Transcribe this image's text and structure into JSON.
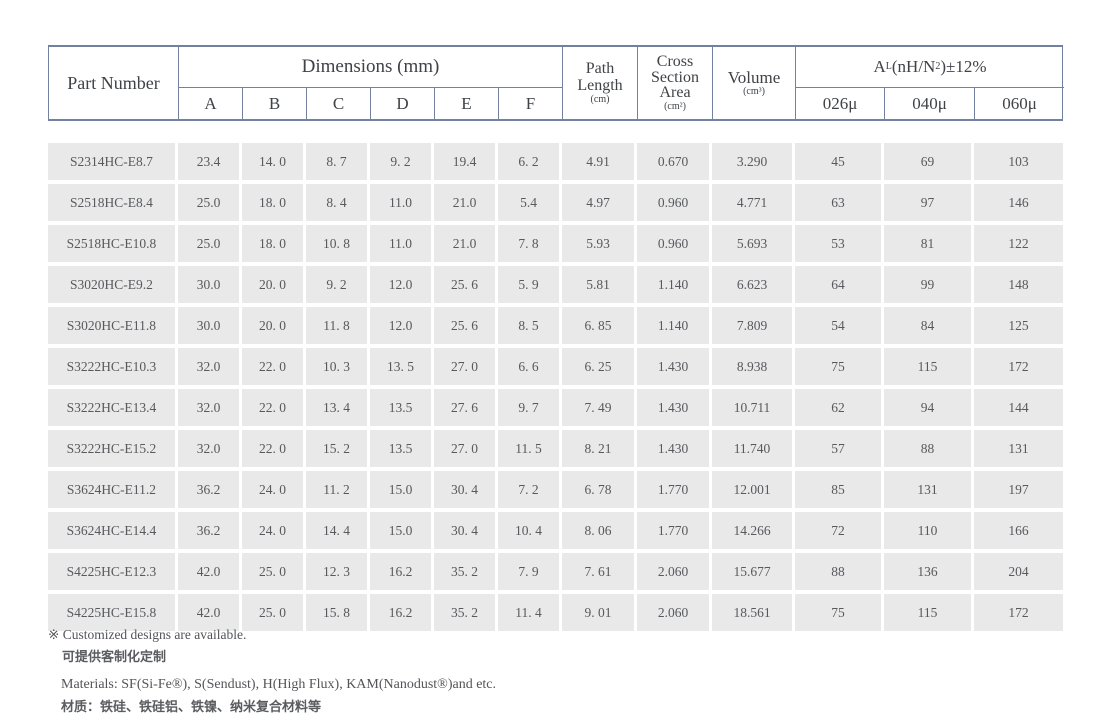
{
  "table": {
    "header": {
      "part_number": "Part Number",
      "dimensions_group": "Dimensions (mm)",
      "dim_columns": [
        "A",
        "B",
        "C",
        "D",
        "E",
        "F"
      ],
      "path_length": {
        "line1": "Path",
        "line2": "Length",
        "unit": "(cm)"
      },
      "cross_section": {
        "line1": "Cross",
        "line2": "Section",
        "line3": "Area",
        "unit": "(cm²)"
      },
      "volume": {
        "label": "Volume",
        "unit": "(cm³)"
      },
      "al_group": {
        "prefix": "A",
        "sub": "L",
        "mid": "(nH/N",
        "sup": "2",
        "suffix": ")±12%"
      },
      "al_columns": [
        "026μ",
        "040μ",
        "060μ"
      ]
    },
    "rows": [
      [
        "S2314HC-E8.7",
        "23.4",
        "14. 0",
        "8. 7",
        "9. 2",
        "19.4",
        "6. 2",
        "4.91",
        "0.670",
        "3.290",
        "45",
        "69",
        "103"
      ],
      [
        "S2518HC-E8.4",
        "25.0",
        "18. 0",
        "8. 4",
        "11.0",
        "21.0",
        "5.4",
        "4.97",
        "0.960",
        "4.771",
        "63",
        "97",
        "146"
      ],
      [
        "S2518HC-E10.8",
        "25.0",
        "18. 0",
        "10. 8",
        "11.0",
        "21.0",
        "7. 8",
        "5.93",
        "0.960",
        "5.693",
        "53",
        "81",
        "122"
      ],
      [
        "S3020HC-E9.2",
        "30.0",
        "20. 0",
        "9. 2",
        "12.0",
        "25. 6",
        "5. 9",
        "5.81",
        "1.140",
        "6.623",
        "64",
        "99",
        "148"
      ],
      [
        "S3020HC-E11.8",
        "30.0",
        "20. 0",
        "11. 8",
        "12.0",
        "25. 6",
        "8. 5",
        "6. 85",
        "1.140",
        "7.809",
        "54",
        "84",
        "125"
      ],
      [
        "S3222HC-E10.3",
        "32.0",
        "22. 0",
        "10. 3",
        "13. 5",
        "27. 0",
        "6. 6",
        "6. 25",
        "1.430",
        "8.938",
        "75",
        "115",
        "172"
      ],
      [
        "S3222HC-E13.4",
        "32.0",
        "22. 0",
        "13. 4",
        "13.5",
        "27. 6",
        "9. 7",
        "7. 49",
        "1.430",
        "10.711",
        "62",
        "94",
        "144"
      ],
      [
        "S3222HC-E15.2",
        "32.0",
        "22. 0",
        "15. 2",
        "13.5",
        "27. 0",
        "11. 5",
        "8. 21",
        "1.430",
        "11.740",
        "57",
        "88",
        "131"
      ],
      [
        "S3624HC-E11.2",
        "36.2",
        "24. 0",
        "11. 2",
        "15.0",
        "30. 4",
        "7. 2",
        "6. 78",
        "1.770",
        "12.001",
        "85",
        "131",
        "197"
      ],
      [
        "S3624HC-E14.4",
        "36.2",
        "24. 0",
        "14. 4",
        "15.0",
        "30. 4",
        "10. 4",
        "8. 06",
        "1.770",
        "14.266",
        "72",
        "110",
        "166"
      ],
      [
        "S4225HC-E12.3",
        "42.0",
        "25. 0",
        "12. 3",
        "16.2",
        "35. 2",
        "7. 9",
        "7. 61",
        "2.060",
        "15.677",
        "88",
        "136",
        "204"
      ],
      [
        "S4225HC-E15.8",
        "42.0",
        "25. 0",
        "15. 8",
        "16.2",
        "35. 2",
        "11. 4",
        "9. 01",
        "2.060",
        "18.561",
        "75",
        "115",
        "172"
      ]
    ]
  },
  "footnotes": {
    "note_symbol": "※",
    "note_en": "Customized designs are available.",
    "note_cn": "可提供客制化定制",
    "materials_en": "Materials: SF(Si-Fe®), S(Sendust), H(High Flux), KAM(Nanodust®)and etc.",
    "materials_cn": "材质：铁硅、铁硅铝、铁镍、纳米复合材料等"
  },
  "colors": {
    "border": "#72819f",
    "row_background": "#e9e9ea"
  }
}
